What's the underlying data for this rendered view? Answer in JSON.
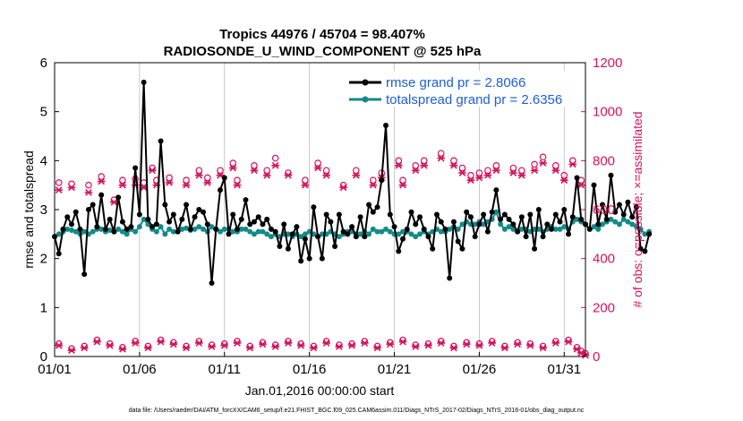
{
  "chart_data": {
    "type": "line",
    "title_line1": "Tropics 44976 / 45704 = 98.407%",
    "title_line2": "RADIOSONDE_U_WIND_COMPONENT @ 525 hPa",
    "xlabel": "Jan.01,2016 00:00:00 start",
    "ylabel_left": "rmse and totalspread",
    "ylabel_right": "# of obs: o=possible; ×=assimilated",
    "footer": "data file: /Users/raeder/DAI/ATM_forcXX/CAM6_setup/f.e21.FHIST_BGC.f09_025.CAM6assim.011/Diags_NTrS_2017-02/Diags_NTrS_2016-01/obs_diag_output.nc",
    "xlim": [
      0,
      31.25
    ],
    "ylim_left": [
      0,
      6
    ],
    "ylim_right": [
      0,
      1200
    ],
    "x_ticks": [
      0,
      5,
      10,
      15,
      20,
      25,
      30
    ],
    "x_tick_labels": [
      "01/01",
      "01/06",
      "01/11",
      "01/16",
      "01/21",
      "01/26",
      "01/31"
    ],
    "y_left_ticks": [
      0,
      1,
      2,
      3,
      4,
      5,
      6
    ],
    "y_left_tick_labels": [
      "0",
      "1",
      "2",
      "3",
      "4",
      "5",
      "6"
    ],
    "y_right_ticks": [
      0,
      200,
      400,
      600,
      800,
      1000,
      1200
    ],
    "y_right_tick_labels": [
      "0",
      "200",
      "400",
      "600",
      "800",
      "1000",
      "1200"
    ],
    "colors": {
      "rmse": "#000000",
      "spread": "#138a8a",
      "obs": "#d6135d",
      "legend_text": "#1d5ed8"
    },
    "series": [
      {
        "name": "rmse grand pr = 2.8066",
        "step": 0.25,
        "values": [
          2.45,
          2.1,
          2.6,
          2.85,
          2.7,
          2.95,
          2.6,
          1.68,
          3.0,
          3.1,
          2.65,
          3.3,
          2.6,
          2.8,
          2.55,
          3.25,
          2.75,
          2.6,
          2.65,
          3.85,
          2.9,
          5.6,
          2.8,
          2.65,
          2.7,
          4.4,
          3.1,
          2.75,
          2.9,
          2.55,
          2.8,
          3.1,
          2.6,
          2.85,
          3.0,
          2.95,
          2.7,
          1.5,
          2.6,
          3.4,
          3.65,
          2.5,
          2.9,
          2.6,
          2.8,
          3.2,
          2.7,
          2.75,
          2.85,
          2.7,
          2.8,
          2.6,
          2.55,
          2.25,
          2.7,
          2.2,
          2.5,
          2.65,
          1.95,
          2.4,
          2.0,
          3.05,
          2.45,
          2.0,
          2.9,
          2.75,
          2.25,
          2.9,
          2.55,
          2.5,
          2.65,
          2.45,
          2.85,
          2.45,
          3.1,
          2.95,
          3.05,
          3.6,
          4.72,
          2.9,
          2.65,
          2.15,
          2.4,
          2.6,
          2.95,
          2.7,
          2.85,
          2.6,
          2.45,
          2.2,
          2.9,
          2.75,
          2.6,
          1.6,
          2.75,
          2.35,
          2.2,
          2.95,
          2.85,
          2.45,
          2.7,
          2.9,
          2.55,
          2.95,
          3.4,
          2.8,
          2.9,
          2.8,
          2.7,
          2.55,
          2.85,
          2.45,
          2.9,
          2.2,
          3.0,
          2.45,
          2.7,
          2.6,
          2.9,
          2.75,
          3.0,
          2.5,
          2.85,
          3.65,
          2.8,
          2.7,
          2.6,
          3.5,
          2.7,
          3.1,
          2.8,
          3.7,
          2.95,
          3.1,
          2.9,
          3.15,
          2.85,
          3.05,
          2.2,
          2.15,
          2.5
        ]
      },
      {
        "name": "totalspread grand pr = 2.6356",
        "step": 0.25,
        "values": [
          2.45,
          2.5,
          2.55,
          2.6,
          2.58,
          2.55,
          2.5,
          2.55,
          2.5,
          2.55,
          2.6,
          2.6,
          2.55,
          2.58,
          2.55,
          2.6,
          2.55,
          2.5,
          2.6,
          2.55,
          2.65,
          2.8,
          2.7,
          2.6,
          2.55,
          2.65,
          2.5,
          2.6,
          2.55,
          2.55,
          2.6,
          2.62,
          2.58,
          2.6,
          2.65,
          2.6,
          2.55,
          2.65,
          2.6,
          2.55,
          2.6,
          2.6,
          2.55,
          2.55,
          2.6,
          2.6,
          2.55,
          2.5,
          2.55,
          2.55,
          2.5,
          2.45,
          2.5,
          2.45,
          2.5,
          2.5,
          2.45,
          2.5,
          2.45,
          2.5,
          2.55,
          2.5,
          2.45,
          2.5,
          2.5,
          2.55,
          2.5,
          2.45,
          2.5,
          2.55,
          2.55,
          2.5,
          2.5,
          2.55,
          2.5,
          2.6,
          2.55,
          2.55,
          2.6,
          2.55,
          2.5,
          2.5,
          2.55,
          2.55,
          2.5,
          2.45,
          2.5,
          2.55,
          2.5,
          2.55,
          2.6,
          2.55,
          2.55,
          2.6,
          2.65,
          2.6,
          2.7,
          2.75,
          2.7,
          2.7,
          2.75,
          2.7,
          2.75,
          2.8,
          2.95,
          2.7,
          2.6,
          2.65,
          2.6,
          2.55,
          2.6,
          2.6,
          2.55,
          2.6,
          2.6,
          2.55,
          2.6,
          2.65,
          2.6,
          2.6,
          2.65,
          2.6,
          2.75,
          2.8,
          2.75,
          2.7,
          2.6,
          2.65,
          2.6,
          2.7,
          2.75,
          2.8,
          2.75,
          2.7,
          2.8,
          2.75,
          2.7,
          2.65,
          2.6,
          2.5,
          2.55
        ]
      }
    ],
    "obs_possible_upper": [
      {
        "x": 0.25,
        "y": 710
      },
      {
        "x": 1.0,
        "y": 705
      },
      {
        "x": 2.0,
        "y": 700
      },
      {
        "x": 2.75,
        "y": 735
      },
      {
        "x": 3.5,
        "y": 640
      },
      {
        "x": 4.0,
        "y": 720
      },
      {
        "x": 4.75,
        "y": 725
      },
      {
        "x": 5.25,
        "y": 710
      },
      {
        "x": 5.75,
        "y": 770
      },
      {
        "x": 6.0,
        "y": 720
      },
      {
        "x": 6.75,
        "y": 730
      },
      {
        "x": 7.75,
        "y": 720
      },
      {
        "x": 8.5,
        "y": 760
      },
      {
        "x": 9.0,
        "y": 730
      },
      {
        "x": 9.75,
        "y": 760
      },
      {
        "x": 10.5,
        "y": 790
      },
      {
        "x": 10.75,
        "y": 720
      },
      {
        "x": 11.75,
        "y": 780
      },
      {
        "x": 12.5,
        "y": 760
      },
      {
        "x": 13.0,
        "y": 810
      },
      {
        "x": 13.75,
        "y": 750
      },
      {
        "x": 14.75,
        "y": 720
      },
      {
        "x": 15.5,
        "y": 790
      },
      {
        "x": 16.0,
        "y": 760
      },
      {
        "x": 17.0,
        "y": 700
      },
      {
        "x": 17.75,
        "y": 760
      },
      {
        "x": 18.75,
        "y": 720
      },
      {
        "x": 19.25,
        "y": 750
      },
      {
        "x": 20.25,
        "y": 800
      },
      {
        "x": 20.5,
        "y": 720
      },
      {
        "x": 21.25,
        "y": 780
      },
      {
        "x": 21.75,
        "y": 800
      },
      {
        "x": 22.75,
        "y": 830
      },
      {
        "x": 23.5,
        "y": 800
      },
      {
        "x": 24.0,
        "y": 770
      },
      {
        "x": 24.5,
        "y": 740
      },
      {
        "x": 25.0,
        "y": 750
      },
      {
        "x": 25.5,
        "y": 760
      },
      {
        "x": 26.0,
        "y": 780
      },
      {
        "x": 27.0,
        "y": 770
      },
      {
        "x": 27.5,
        "y": 760
      },
      {
        "x": 28.25,
        "y": 785
      },
      {
        "x": 28.75,
        "y": 815
      },
      {
        "x": 29.5,
        "y": 780
      },
      {
        "x": 30.0,
        "y": 740
      },
      {
        "x": 30.5,
        "y": 800
      },
      {
        "x": 31.0,
        "y": 720
      }
    ],
    "obs_assimilated_upper": [
      {
        "x": 0.25,
        "y": 680
      },
      {
        "x": 1.0,
        "y": 690
      },
      {
        "x": 2.0,
        "y": 670
      },
      {
        "x": 2.75,
        "y": 715
      },
      {
        "x": 3.5,
        "y": 630
      },
      {
        "x": 4.0,
        "y": 700
      },
      {
        "x": 4.75,
        "y": 700
      },
      {
        "x": 5.25,
        "y": 690
      },
      {
        "x": 5.75,
        "y": 760
      },
      {
        "x": 6.0,
        "y": 700
      },
      {
        "x": 6.75,
        "y": 710
      },
      {
        "x": 7.75,
        "y": 700
      },
      {
        "x": 8.5,
        "y": 740
      },
      {
        "x": 9.0,
        "y": 710
      },
      {
        "x": 9.75,
        "y": 740
      },
      {
        "x": 10.5,
        "y": 770
      },
      {
        "x": 10.75,
        "y": 700
      },
      {
        "x": 11.75,
        "y": 760
      },
      {
        "x": 12.5,
        "y": 740
      },
      {
        "x": 13.0,
        "y": 780
      },
      {
        "x": 13.75,
        "y": 740
      },
      {
        "x": 14.75,
        "y": 700
      },
      {
        "x": 15.5,
        "y": 770
      },
      {
        "x": 16.0,
        "y": 740
      },
      {
        "x": 17.0,
        "y": 690
      },
      {
        "x": 17.75,
        "y": 740
      },
      {
        "x": 18.75,
        "y": 700
      },
      {
        "x": 19.25,
        "y": 730
      },
      {
        "x": 20.25,
        "y": 780
      },
      {
        "x": 20.5,
        "y": 700
      },
      {
        "x": 21.25,
        "y": 760
      },
      {
        "x": 21.75,
        "y": 780
      },
      {
        "x": 22.75,
        "y": 810
      },
      {
        "x": 23.5,
        "y": 780
      },
      {
        "x": 24.0,
        "y": 750
      },
      {
        "x": 24.5,
        "y": 720
      },
      {
        "x": 25.0,
        "y": 730
      },
      {
        "x": 25.5,
        "y": 740
      },
      {
        "x": 26.0,
        "y": 760
      },
      {
        "x": 27.0,
        "y": 750
      },
      {
        "x": 27.5,
        "y": 740
      },
      {
        "x": 28.25,
        "y": 760
      },
      {
        "x": 28.75,
        "y": 790
      },
      {
        "x": 29.5,
        "y": 760
      },
      {
        "x": 30.0,
        "y": 720
      },
      {
        "x": 30.5,
        "y": 785
      },
      {
        "x": 31.0,
        "y": 700
      }
    ],
    "obs_lower": [
      {
        "x": 0.25,
        "y": 45
      },
      {
        "x": 1.0,
        "y": 25
      },
      {
        "x": 1.75,
        "y": 35
      },
      {
        "x": 2.5,
        "y": 60
      },
      {
        "x": 3.25,
        "y": 45
      },
      {
        "x": 4.0,
        "y": 30
      },
      {
        "x": 4.75,
        "y": 55
      },
      {
        "x": 5.5,
        "y": 35
      },
      {
        "x": 6.25,
        "y": 60
      },
      {
        "x": 7.0,
        "y": 50
      },
      {
        "x": 7.75,
        "y": 35
      },
      {
        "x": 8.5,
        "y": 55
      },
      {
        "x": 9.25,
        "y": 40
      },
      {
        "x": 10.0,
        "y": 45
      },
      {
        "x": 10.75,
        "y": 55
      },
      {
        "x": 11.5,
        "y": 35
      },
      {
        "x": 12.25,
        "y": 50
      },
      {
        "x": 13.0,
        "y": 40
      },
      {
        "x": 13.75,
        "y": 55
      },
      {
        "x": 14.5,
        "y": 45
      },
      {
        "x": 15.25,
        "y": 35
      },
      {
        "x": 16.0,
        "y": 55
      },
      {
        "x": 16.75,
        "y": 40
      },
      {
        "x": 17.5,
        "y": 45
      },
      {
        "x": 18.25,
        "y": 55
      },
      {
        "x": 19.0,
        "y": 35
      },
      {
        "x": 19.75,
        "y": 50
      },
      {
        "x": 20.5,
        "y": 60
      },
      {
        "x": 21.25,
        "y": 40
      },
      {
        "x": 22.0,
        "y": 45
      },
      {
        "x": 22.75,
        "y": 55
      },
      {
        "x": 23.5,
        "y": 35
      },
      {
        "x": 24.25,
        "y": 50
      },
      {
        "x": 25.0,
        "y": 45
      },
      {
        "x": 25.75,
        "y": 55
      },
      {
        "x": 26.5,
        "y": 35
      },
      {
        "x": 27.25,
        "y": 50
      },
      {
        "x": 28.0,
        "y": 45
      },
      {
        "x": 28.75,
        "y": 35
      },
      {
        "x": 29.5,
        "y": 55
      },
      {
        "x": 30.25,
        "y": 60
      },
      {
        "x": 30.75,
        "y": 30
      },
      {
        "x": 31.0,
        "y": 15
      },
      {
        "x": 31.25,
        "y": 5
      }
    ]
  }
}
